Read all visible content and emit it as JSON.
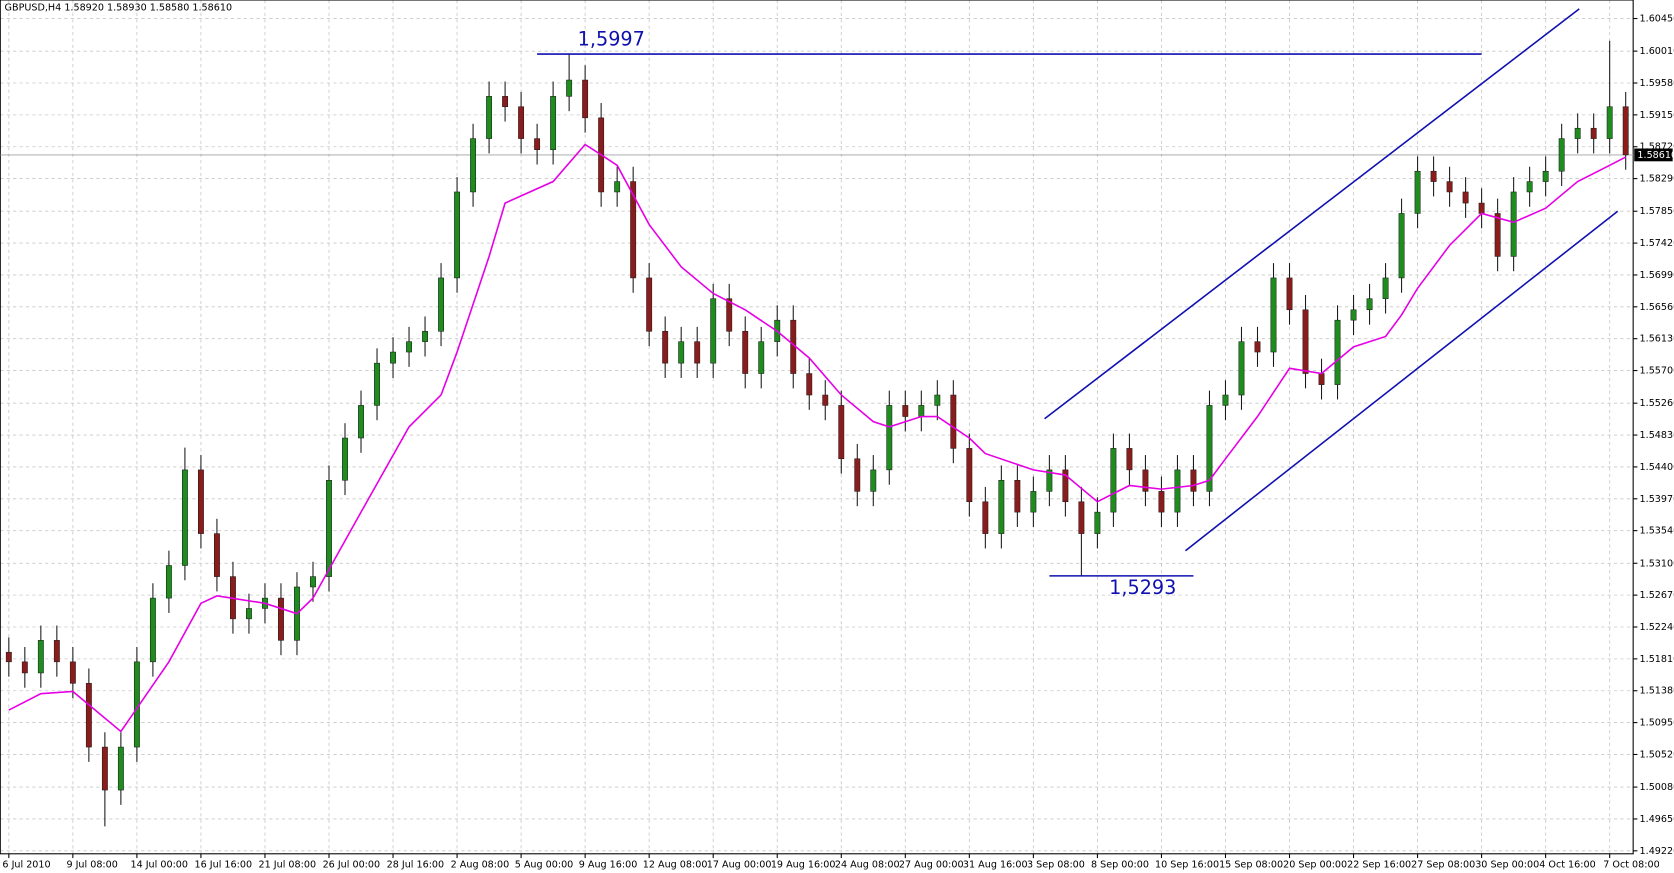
{
  "chart_data": {
    "type": "candlestick",
    "header": {
      "symbol": "GBPUSD,H4",
      "quote": [
        "1.58920",
        "1.58930",
        "1.58580",
        "1.58610"
      ]
    },
    "categories": [
      "6 Jul 2010",
      null,
      null,
      null,
      "9 Jul 08:00",
      null,
      null,
      null,
      "14 Jul 00:00",
      null,
      null,
      null,
      "16 Jul 16:00",
      null,
      null,
      null,
      "21 Jul 08:00",
      null,
      null,
      null,
      "26 Jul 00:00",
      null,
      null,
      null,
      "28 Jul 16:00",
      null,
      null,
      null,
      "2 Aug 08:00",
      null,
      null,
      null,
      "5 Aug 00:00",
      null,
      null,
      null,
      "9 Aug 16:00",
      null,
      null,
      null,
      "12 Aug 08:00",
      null,
      null,
      null,
      "17 Aug 00:00",
      null,
      null,
      null,
      "19 Aug 16:00",
      null,
      null,
      null,
      "24 Aug 08:00",
      null,
      null,
      null,
      "27 Aug 00:00",
      null,
      null,
      null,
      "31 Aug 16:00",
      null,
      null,
      null,
      "3 Sep 08:00",
      null,
      null,
      null,
      "8 Sep 00:00",
      null,
      null,
      null,
      "10 Sep 16:00",
      null,
      null,
      null,
      "15 Sep 08:00",
      null,
      null,
      null,
      "20 Sep 00:00",
      null,
      null,
      null,
      "22 Sep 16:00",
      null,
      null,
      null,
      "27 Sep 08:00",
      null,
      null,
      null,
      "30 Sep 00:00",
      null,
      null,
      null,
      "4 Oct 16:00",
      null,
      null,
      null,
      "7 Oct 08:00",
      null
    ],
    "open": [
      1.519,
      1.5177,
      1.5162,
      1.5206,
      1.5177,
      1.5148,
      1.5062,
      1.5004,
      1.5062,
      1.5177,
      1.5263,
      1.5307,
      1.5436,
      1.535,
      1.5292,
      1.5235,
      1.5249,
      1.5263,
      1.5206,
      1.5278,
      1.5292,
      1.5422,
      1.5479,
      1.5523,
      1.558,
      1.5595,
      1.5609,
      1.5623,
      1.5695,
      1.5811,
      1.5883,
      1.594,
      1.5926,
      1.5883,
      1.5868,
      1.594,
      1.5962,
      1.5911,
      1.5811,
      1.5825,
      1.5695,
      1.5623,
      1.558,
      1.5609,
      1.558,
      1.5667,
      1.5623,
      1.5566,
      1.5609,
      1.5638,
      1.5566,
      1.5537,
      1.5523,
      1.5451,
      1.5407,
      1.5436,
      1.5523,
      1.5508,
      1.5523,
      1.5537,
      1.5465,
      1.5393,
      1.535,
      1.5422,
      1.5379,
      1.5407,
      1.5436,
      1.5393,
      1.535,
      1.5379,
      1.5465,
      1.5436,
      1.5407,
      1.5379,
      1.5436,
      1.5407,
      1.5523,
      1.5537,
      1.5609,
      1.5595,
      1.5695,
      1.5652,
      1.5566,
      1.5551,
      1.5638,
      1.5652,
      1.5667,
      1.5695,
      1.5782,
      1.5839,
      1.5825,
      1.5811,
      1.5796,
      1.5782,
      1.5724,
      1.5811,
      1.5825,
      1.5839,
      1.5883,
      1.5897,
      1.5883,
      1.5926
    ],
    "high": [
      1.521,
      1.5197,
      1.5226,
      1.5226,
      1.5197,
      1.5168,
      1.5082,
      1.5082,
      1.5197,
      1.5283,
      1.5327,
      1.5466,
      1.5456,
      1.537,
      1.5312,
      1.5269,
      1.5283,
      1.5283,
      1.5298,
      1.5312,
      1.5442,
      1.5499,
      1.5543,
      1.56,
      1.5615,
      1.5629,
      1.5643,
      1.5715,
      1.5831,
      1.5903,
      1.596,
      1.596,
      1.5946,
      1.5903,
      1.596,
      1.5997,
      1.5982,
      1.5931,
      1.5845,
      1.5845,
      1.5715,
      1.5643,
      1.5629,
      1.5629,
      1.5687,
      1.5687,
      1.5643,
      1.5629,
      1.5658,
      1.5658,
      1.5586,
      1.5557,
      1.5543,
      1.5471,
      1.5456,
      1.5543,
      1.5543,
      1.5543,
      1.5557,
      1.5557,
      1.5485,
      1.5413,
      1.5442,
      1.5442,
      1.5427,
      1.5456,
      1.5456,
      1.5413,
      1.5399,
      1.5485,
      1.5485,
      1.5456,
      1.5427,
      1.5456,
      1.5456,
      1.5543,
      1.5557,
      1.5629,
      1.5629,
      1.5715,
      1.5715,
      1.5672,
      1.5586,
      1.5658,
      1.5672,
      1.5687,
      1.5715,
      1.5802,
      1.5859,
      1.5859,
      1.5845,
      1.5831,
      1.5816,
      1.5802,
      1.5831,
      1.5845,
      1.5859,
      1.5903,
      1.5917,
      1.5917,
      1.6015,
      1.5946
    ],
    "low": [
      1.5157,
      1.5142,
      1.5142,
      1.5157,
      1.5128,
      1.5042,
      1.4955,
      1.4984,
      1.5042,
      1.5157,
      1.5243,
      1.5287,
      1.533,
      1.5272,
      1.5215,
      1.5215,
      1.5229,
      1.5186,
      1.5186,
      1.5258,
      1.5272,
      1.5402,
      1.5459,
      1.5503,
      1.556,
      1.5575,
      1.5589,
      1.5603,
      1.5675,
      1.5791,
      1.5863,
      1.5906,
      1.5863,
      1.5848,
      1.5848,
      1.592,
      1.5891,
      1.5791,
      1.5791,
      1.5675,
      1.5603,
      1.556,
      1.556,
      1.556,
      1.556,
      1.5603,
      1.5546,
      1.5546,
      1.5589,
      1.5546,
      1.5517,
      1.5503,
      1.5431,
      1.5387,
      1.5387,
      1.5416,
      1.5488,
      1.5488,
      1.5503,
      1.5445,
      1.5373,
      1.533,
      1.533,
      1.5359,
      1.5359,
      1.5387,
      1.5373,
      1.5293,
      1.533,
      1.5359,
      1.5416,
      1.5387,
      1.5359,
      1.5359,
      1.5387,
      1.5387,
      1.5503,
      1.5517,
      1.5575,
      1.5575,
      1.5632,
      1.5546,
      1.5531,
      1.5531,
      1.5618,
      1.5632,
      1.5647,
      1.5675,
      1.5762,
      1.5805,
      1.5791,
      1.5776,
      1.5762,
      1.5704,
      1.5704,
      1.5791,
      1.5805,
      1.5819,
      1.5863,
      1.5863,
      1.5863,
      1.5841
    ],
    "close": [
      1.5177,
      1.5162,
      1.5206,
      1.5177,
      1.5148,
      1.5062,
      1.5004,
      1.5062,
      1.5177,
      1.5263,
      1.5307,
      1.5436,
      1.535,
      1.5292,
      1.5235,
      1.5249,
      1.5263,
      1.5206,
      1.5278,
      1.5292,
      1.5422,
      1.5479,
      1.5523,
      1.558,
      1.5595,
      1.5609,
      1.5623,
      1.5695,
      1.5811,
      1.5883,
      1.594,
      1.5926,
      1.5883,
      1.5868,
      1.594,
      1.5962,
      1.5911,
      1.5811,
      1.5825,
      1.5695,
      1.5623,
      1.558,
      1.5609,
      1.558,
      1.5667,
      1.5623,
      1.5566,
      1.5609,
      1.5638,
      1.5566,
      1.5537,
      1.5523,
      1.5451,
      1.5407,
      1.5436,
      1.5523,
      1.5508,
      1.5523,
      1.5537,
      1.5465,
      1.5393,
      1.535,
      1.5422,
      1.5379,
      1.5407,
      1.5436,
      1.5393,
      1.535,
      1.5379,
      1.5465,
      1.5436,
      1.5407,
      1.5379,
      1.5436,
      1.5407,
      1.5523,
      1.5537,
      1.5609,
      1.5595,
      1.5695,
      1.5652,
      1.5566,
      1.5551,
      1.5638,
      1.5652,
      1.5667,
      1.5695,
      1.5782,
      1.5839,
      1.5825,
      1.5811,
      1.5796,
      1.5782,
      1.5724,
      1.5811,
      1.5825,
      1.5839,
      1.5883,
      1.5897,
      1.5883,
      1.5926,
      1.5861
    ],
    "colors": {
      "up": "#1e8c1e",
      "down": "#8b1c1c",
      "wick": "#1a1a1a"
    },
    "ma": {
      "color": "#e600e6",
      "x": [
        0,
        2,
        4,
        7,
        10,
        12,
        13,
        16,
        18,
        19,
        22,
        25,
        27,
        28,
        30,
        31,
        34,
        36,
        37,
        38,
        40,
        42,
        44,
        46,
        48,
        50,
        52,
        54,
        55,
        57,
        58,
        60,
        61,
        64,
        66,
        68,
        70,
        72,
        74,
        75,
        76,
        78,
        80,
        82,
        84,
        86,
        87,
        88,
        90,
        92,
        94,
        96,
        98,
        100,
        101
      ],
      "values": [
        1.5112,
        1.5134,
        1.5137,
        1.5083,
        1.5177,
        1.5256,
        1.5266,
        1.5256,
        1.5242,
        1.5263,
        1.5379,
        1.5494,
        1.5537,
        1.5595,
        1.5724,
        1.5796,
        1.5825,
        1.5875,
        1.5861,
        1.5847,
        1.5767,
        1.571,
        1.5674,
        1.5652,
        1.5623,
        1.5587,
        1.5537,
        1.5501,
        1.5494,
        1.5508,
        1.5508,
        1.5479,
        1.5458,
        1.5436,
        1.5429,
        1.5393,
        1.5415,
        1.541,
        1.5415,
        1.5422,
        1.5451,
        1.5508,
        1.5573,
        1.5566,
        1.5602,
        1.5616,
        1.5645,
        1.5681,
        1.5739,
        1.5782,
        1.577,
        1.5789,
        1.5825,
        1.5847,
        1.5858
      ]
    },
    "ylim": [
      1.4918,
      1.607
    ],
    "yticks": [
      {
        "value": 1.6045,
        "label": "1.60450"
      },
      {
        "value": 1.6001,
        "label": "1.60010"
      },
      {
        "value": 1.5958,
        "label": "1.59580"
      },
      {
        "value": 1.5915,
        "label": "1.59150"
      },
      {
        "value": 1.5872,
        "label": "1.58720"
      },
      {
        "value": 1.5829,
        "label": "1.58290"
      },
      {
        "value": 1.5785,
        "label": "1.57850"
      },
      {
        "value": 1.5742,
        "label": "1.57420"
      },
      {
        "value": 1.5699,
        "label": "1.56990"
      },
      {
        "value": 1.5656,
        "label": "1.56560"
      },
      {
        "value": 1.5613,
        "label": "1.56130"
      },
      {
        "value": 1.557,
        "label": "1.55700"
      },
      {
        "value": 1.5526,
        "label": "1.55260"
      },
      {
        "value": 1.5483,
        "label": "1.54830"
      },
      {
        "value": 1.544,
        "label": "1.54400"
      },
      {
        "value": 1.5397,
        "label": "1.53970"
      },
      {
        "value": 1.5354,
        "label": "1.53540"
      },
      {
        "value": 1.531,
        "label": "1.53100"
      },
      {
        "value": 1.5267,
        "label": "1.52670"
      },
      {
        "value": 1.5224,
        "label": "1.52240"
      },
      {
        "value": 1.5181,
        "label": "1.51810"
      },
      {
        "value": 1.5138,
        "label": "1.51380"
      },
      {
        "value": 1.5095,
        "label": "1.50950"
      },
      {
        "value": 1.5052,
        "label": "1.50520"
      },
      {
        "value": 1.5008,
        "label": "1.50080"
      },
      {
        "value": 1.4965,
        "label": "1.49650"
      },
      {
        "value": 1.4922,
        "label": "1.49220"
      }
    ],
    "grid": true,
    "current_price": {
      "value": 1.5861,
      "label": "1.58610"
    },
    "levels": [
      {
        "value": 1.5997,
        "label": "1,5997",
        "from": 33,
        "to": 92,
        "color": "#1010b0"
      },
      {
        "value": 1.5293,
        "label": "1,5293",
        "from": 65,
        "to": 74,
        "color": "#1010b0"
      }
    ],
    "trendlines": [
      {
        "x": [
          64.7,
          98.1
        ],
        "y": [
          1.5505,
          1.6058
        ],
        "color": "#1010b0"
      },
      {
        "x": [
          73.5,
          100.5
        ],
        "y": [
          1.5327,
          1.5785
        ],
        "color": "#1010b0"
      }
    ]
  }
}
